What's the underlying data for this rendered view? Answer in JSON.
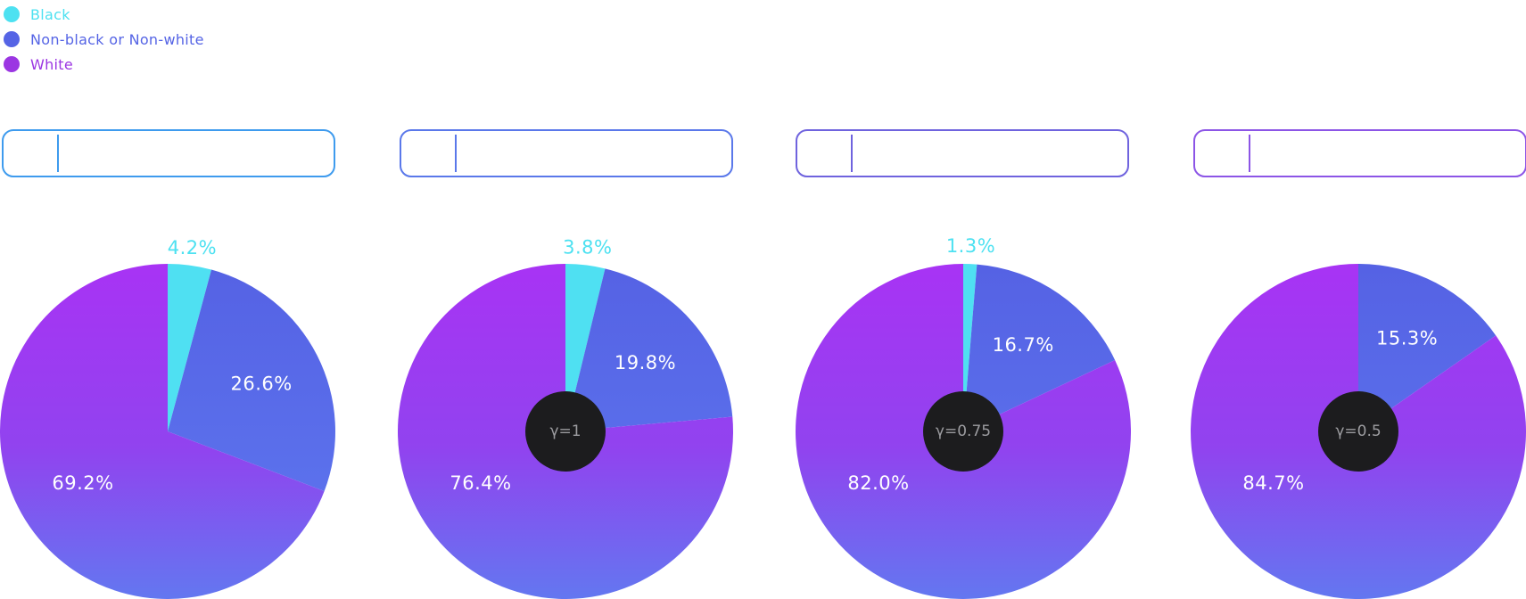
{
  "legend": {
    "items": [
      {
        "label": "Black",
        "color": "#4DE1F1"
      },
      {
        "label": "Non-black or Non-white",
        "color": "#5564E5"
      },
      {
        "label": "White",
        "color": "#9B36E2"
      }
    ]
  },
  "widgets": [
    {
      "border_color": "#3E9BEE"
    },
    {
      "border_color": "#5A78EA"
    },
    {
      "border_color": "#6F63DE"
    },
    {
      "border_color": "#8C55E6"
    }
  ],
  "colors": {
    "black_slice": "#4FE0F2",
    "nonblack_top": "#5562E4",
    "nonblack_bottom": "#5E78F0",
    "white_top": "#A833F4",
    "white_mid": "#9143EF",
    "white_bottom": "#6377F0",
    "center_circle": "#1C1C1E",
    "center_text": "#9C9CA0",
    "inner_label": "#FFFFFF"
  },
  "chart_data": [
    {
      "type": "pie",
      "title": "",
      "categories": [
        "Black",
        "Non-black or Non-white",
        "White"
      ],
      "values": [
        4.2,
        26.6,
        69.2
      ],
      "value_labels": [
        "4.2%",
        "26.6%",
        "69.2%"
      ],
      "start_angle_deg": 0,
      "direction": "clockwise",
      "hole": false
    },
    {
      "type": "pie",
      "title": "γ=1",
      "categories": [
        "Black",
        "Non-black or Non-white",
        "White"
      ],
      "values": [
        3.8,
        19.8,
        76.4
      ],
      "value_labels": [
        "3.8%",
        "19.8%",
        "76.4%"
      ],
      "start_angle_deg": 0,
      "direction": "clockwise",
      "hole": true
    },
    {
      "type": "pie",
      "title": "γ=0.75",
      "categories": [
        "Black",
        "Non-black or Non-white",
        "White"
      ],
      "values": [
        1.3,
        16.7,
        82.0
      ],
      "value_labels": [
        "1.3%",
        "16.7%",
        "82.0%"
      ],
      "start_angle_deg": 0,
      "direction": "clockwise",
      "hole": true
    },
    {
      "type": "pie",
      "title": "γ=0.5",
      "categories": [
        "Black",
        "Non-black or Non-white",
        "White"
      ],
      "values": [
        0.0,
        15.3,
        84.7
      ],
      "value_labels": [
        "",
        "15.3%",
        "84.7%"
      ],
      "start_angle_deg": 0,
      "direction": "clockwise",
      "hole": true
    }
  ]
}
